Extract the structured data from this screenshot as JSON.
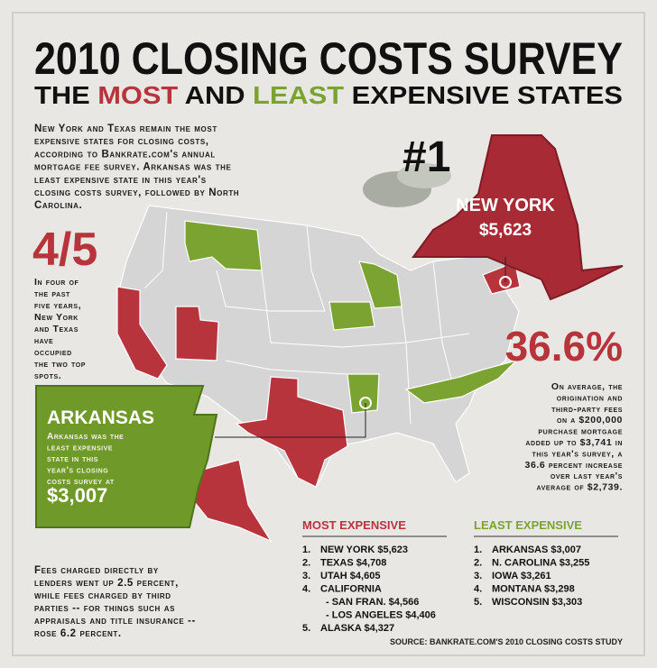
{
  "header": {
    "title": "2010 CLOSING COSTS SURVEY",
    "subtitle": [
      "THE",
      "MOST",
      "AND",
      "LEAST",
      "EXPENSIVE STATES"
    ]
  },
  "intro": [
    "New York and Texas remain the most",
    "expensive states for  closing costs,",
    "according to Bankrate.com's annual",
    "mortgage fee survey.  Arkansas was the",
    "least expensive state in this year's",
    "closing costs survey, followed by North",
    "Carolina."
  ],
  "rank_badge": "#1",
  "new_york": {
    "name": "NEW YORK",
    "cost": "$5,623"
  },
  "streak": {
    "stat": "4/5",
    "text": [
      "In four of",
      "the past",
      "five years,",
      "New York",
      "and Texas",
      "have",
      "occupied",
      "the two top",
      "spots."
    ]
  },
  "increase": {
    "stat": "36.6%",
    "text": [
      "On average, the",
      "origination and",
      "third-party fees",
      "on a $200,000",
      "purchase mortgage",
      "added up to $3,741 in",
      "this year's survey, a",
      "36.6 percent increase",
      "over last year's",
      "average of $2,739."
    ]
  },
  "arkansas": {
    "name": "ARKANSAS",
    "text": [
      "Arkansas was the",
      "least expensive",
      "state in this",
      "year's closing",
      "costs survey at"
    ],
    "cost": "$3,007"
  },
  "fees_note": [
    "Fees charged directly by",
    "lenders went up 2.5 percent,",
    "while fees charged by third",
    "parties -- for things such as",
    "appraisals and title insurance --",
    "rose 6.2 percent."
  ],
  "most_expensive": {
    "heading": "MOST EXPENSIVE",
    "items": [
      {
        "rank": "1.",
        "label": "NEW YORK $5,623"
      },
      {
        "rank": "2.",
        "label": "TEXAS $4,708"
      },
      {
        "rank": "3.",
        "label": "UTAH $4,605"
      },
      {
        "rank": "4.",
        "label": "CALIFORNIA",
        "subitems": [
          "- SAN FRAN. $4,566",
          "- LOS ANGELES $4,406"
        ]
      },
      {
        "rank": "5.",
        "label": "ALASKA $4,327"
      }
    ]
  },
  "least_expensive": {
    "heading": "LEAST EXPENSIVE",
    "items": [
      {
        "rank": "1.",
        "label": "ARKANSAS $3,007"
      },
      {
        "rank": "2.",
        "label": "N. CAROLINA $3,255"
      },
      {
        "rank": "3.",
        "label": "IOWA $3,261"
      },
      {
        "rank": "4.",
        "label": "MONTANA $3,298"
      },
      {
        "rank": "5.",
        "label": "WISCONSIN $3,303"
      }
    ]
  },
  "source": "SOURCE: BANKRATE.COM'S 2010 CLOSING COSTS STUDY"
}
